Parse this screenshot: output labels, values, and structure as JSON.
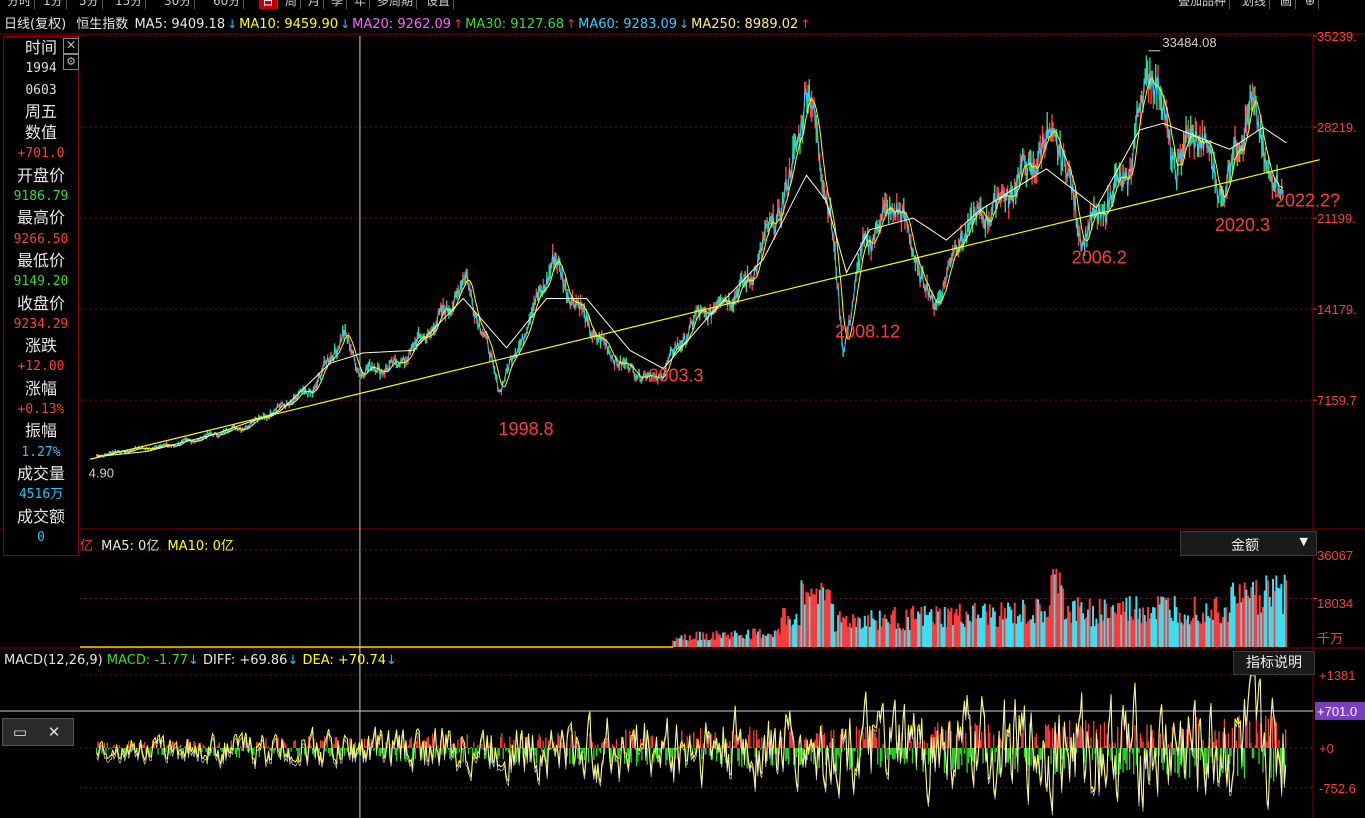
{
  "topbar": {
    "tabs": [
      "分时",
      "1分",
      "5分",
      "15分",
      "30分",
      "60分",
      "日",
      "周",
      "月",
      "季",
      "年",
      "多周期",
      "设置"
    ],
    "active": "日",
    "right_tabs": [
      "叠加品种",
      "划线",
      "画",
      "⊕"
    ]
  },
  "header": {
    "title": "日线(复权)",
    "name": "恒生指数",
    "ma": [
      {
        "label": "MA5: 9409.18",
        "arrow": "↓",
        "color": "#e8e8e8",
        "arrow_color": "#19c5ff"
      },
      {
        "label": "MA10: 9459.90",
        "arrow": "↓",
        "color": "#ffff00",
        "arrow_color": "#19c5ff"
      },
      {
        "label": "MA20: 9262.09",
        "arrow": "↑",
        "color": "#ff66ff",
        "arrow_color": "#ff3333"
      },
      {
        "label": "MA30: 9127.68",
        "arrow": "↑",
        "color": "#33dd33",
        "arrow_color": "#ff3333"
      },
      {
        "label": "MA60: 9283.09",
        "arrow": "↓",
        "color": "#33ccff",
        "arrow_color": "#19c5ff"
      },
      {
        "label": "MA250: 8989.02",
        "arrow": "↑",
        "color": "#ffee88",
        "arrow_color": "#ff3333"
      }
    ]
  },
  "info_panel": {
    "rows": [
      {
        "text": "时间",
        "kind": "label"
      },
      {
        "text": "1994",
        "kind": "value",
        "color": "#dddddd"
      },
      {
        "text": "0603",
        "kind": "value",
        "color": "#dddddd"
      },
      {
        "text": "周五",
        "kind": "label"
      },
      {
        "text": "数值",
        "kind": "label"
      },
      {
        "text": "+701.0",
        "kind": "value",
        "color": "#ff3b3b"
      },
      {
        "text": "开盘价",
        "kind": "label"
      },
      {
        "text": "9186.79",
        "kind": "value",
        "color": "#33dd33"
      },
      {
        "text": "最高价",
        "kind": "label"
      },
      {
        "text": "9266.50",
        "kind": "value",
        "color": "#ff3b3b"
      },
      {
        "text": "最低价",
        "kind": "label"
      },
      {
        "text": "9149.20",
        "kind": "value",
        "color": "#33dd33"
      },
      {
        "text": "收盘价",
        "kind": "label"
      },
      {
        "text": "9234.29",
        "kind": "value",
        "color": "#ff3b3b"
      },
      {
        "text": "涨跌",
        "kind": "label"
      },
      {
        "text": "+12.00",
        "kind": "value",
        "color": "#ff3b3b"
      },
      {
        "text": "涨幅",
        "kind": "label"
      },
      {
        "text": "+0.13%",
        "kind": "value",
        "color": "#ff3b3b"
      },
      {
        "text": "振幅",
        "kind": "label"
      },
      {
        "text": "1.27%",
        "kind": "value",
        "color": "#19c5ff"
      },
      {
        "text": "成交量",
        "kind": "label"
      },
      {
        "text": "4516万",
        "kind": "value",
        "color": "#19c5ff"
      },
      {
        "text": "成交额",
        "kind": "label"
      },
      {
        "text": "0",
        "kind": "value",
        "color": "#19c5ff"
      }
    ]
  },
  "volume_panel": {
    "unit_prefix": "亿",
    "ma5": "MA5: 0亿",
    "ma10": "MA10: 0亿",
    "selector": "金额",
    "ticks": [
      "36067",
      "18034",
      "千万"
    ]
  },
  "macd_panel": {
    "title": "MACD(12,26,9)",
    "macd": "MACD: -1.77",
    "macd_arrow": "↓",
    "diff": "DIFF: +69.86",
    "diff_arrow": "↓",
    "dea": "DEA: +70.74",
    "dea_arrow": "↓",
    "explain": "指标说明",
    "ticks": [
      "+1381",
      "+701.0",
      "+0",
      "-752.6"
    ]
  },
  "mini_toolbar": {
    "restore_icon": "window-restore-icon",
    "close_icon": "close-icon"
  },
  "chart_data": {
    "type": "line",
    "title": "恒生指数",
    "y_ticks": [
      "35239.",
      "28219.",
      "21199.",
      "14179.",
      "7159.7"
    ],
    "y_tick_values": [
      35239,
      28219,
      21199,
      14179,
      7159.7
    ],
    "ylim": [
      -2700,
      35239
    ],
    "xlim": [
      1986,
      2023
    ],
    "series": [
      {
        "name": "",
        "type": "candles-approx",
        "color": "#33dd88",
        "x": [
          1986.5,
          1987.5,
          1989,
          1991,
          1993,
          1993.9,
          1994.4,
          1995.5,
          1996.8,
          1997.6,
          1998.6,
          1999.5,
          2000.2,
          2000.8,
          2001.5,
          2002.3,
          2003.3,
          2004.5,
          2006,
          2007.3,
          2007.8,
          2008.5,
          2008.9,
          2009.5,
          2010.5,
          2011.6,
          2012.5,
          2013.7,
          2015.3,
          2016.1,
          2017.5,
          2018.1,
          2018.9,
          2019.5,
          2020.3,
          2021.1,
          2021.8,
          2022.1
        ],
        "y": [
          2900,
          3300,
          3800,
          5200,
          8000,
          12300,
          9400,
          9800,
          13400,
          16500,
          8000,
          13500,
          17900,
          15000,
          12000,
          9800,
          8700,
          13500,
          16000,
          23900,
          31500,
          22000,
          11000,
          19000,
          22500,
          14200,
          20200,
          22700,
          27800,
          19600,
          25000,
          33484,
          25000,
          28200,
          23000,
          30000,
          24200,
          22500
        ]
      },
      {
        "name": "",
        "type": "ma",
        "color": "#ffffcc",
        "x": [
          1986.5,
          1988,
          1990,
          1992,
          1993.5,
          1994.5,
          1996,
          1997.5,
          1998.8,
          2000,
          2001.2,
          2002.5,
          2003.5,
          2005,
          2006.5,
          2007.8,
          2008.4,
          2009,
          2009.7,
          2011,
          2012,
          2013,
          2015,
          2016.5,
          2017.8,
          2018.5,
          2019.5,
          2020.5,
          2021.5,
          2022.2
        ],
        "y": [
          2800,
          3200,
          4500,
          6300,
          10000,
          10800,
          11000,
          15000,
          11200,
          15000,
          15000,
          11000,
          9600,
          14000,
          18000,
          24500,
          22500,
          17000,
          20300,
          21200,
          19500,
          21800,
          25000,
          22000,
          28000,
          28500,
          27500,
          26500,
          28200,
          27000
        ]
      },
      {
        "name": "",
        "type": "trendline",
        "color": "#ffff00",
        "x": [
          1986.3,
          2023.2
        ],
        "y": [
          2600,
          25700
        ]
      }
    ],
    "annotations": [
      {
        "text": "33484.08",
        "x": 2018.0,
        "y": 33484
      },
      {
        "text": "4.90",
        "x": 1986.5,
        "y": 2600
      },
      {
        "text": "1998.8",
        "x": 1998.8,
        "y": 5100
      },
      {
        "text": "2003.3",
        "x": 2003.3,
        "y": 9200
      },
      {
        "text": "2008.12",
        "x": 2008.9,
        "y": 12600
      },
      {
        "text": "2006.2",
        "x": 2016.0,
        "y": 18300
      },
      {
        "text": "2020.3",
        "x": 2020.3,
        "y": 20800
      },
      {
        "text": "2022.2?",
        "x": 2022.1,
        "y": 22700
      }
    ],
    "cursor_x": 1994.4,
    "volume": {
      "max": 36067,
      "ticks": [
        36067,
        18034
      ]
    },
    "macd": {
      "range": [
        -1100,
        1600
      ]
    }
  }
}
